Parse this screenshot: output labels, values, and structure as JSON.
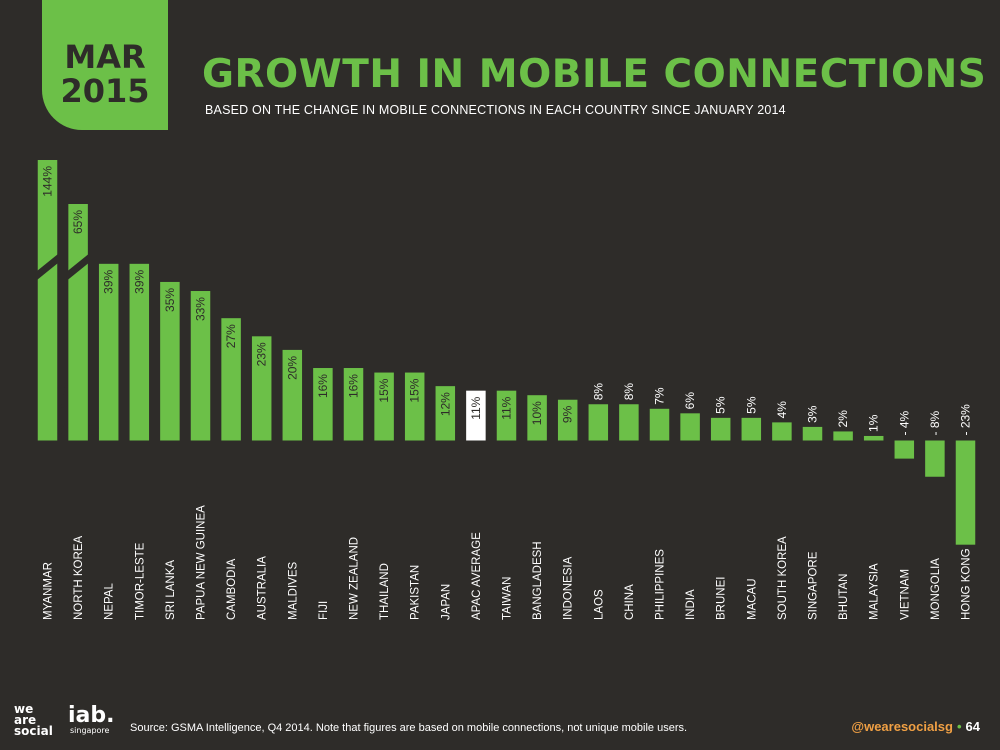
{
  "badge": {
    "month": "MAR",
    "year": "2015"
  },
  "header": {
    "title": "GROWTH IN MOBILE CONNECTIONS",
    "subtitle": "BASED ON THE CHANGE IN MOBILE CONNECTIONS IN EACH COUNTRY SINCE JANUARY 2014"
  },
  "watermark": {
    "lines": [
      "we",
      "are",
      "social"
    ]
  },
  "footer": {
    "logo1": [
      "we",
      "are",
      "social"
    ],
    "logo2": {
      "name": "iab.",
      "sub": "singapore"
    },
    "source": "Source: GSMA Intelligence, Q4 2014. Note that figures are based on mobile connections, not unique mobile users.",
    "handle": "@wearesocialsg",
    "page": "64"
  },
  "colors": {
    "background": "#2e2c29",
    "accent": "#6cc048",
    "average": "#ffffff",
    "handle": "#f0a044"
  },
  "chart_data": {
    "type": "bar",
    "truncated_categories": [
      "MYANMAR",
      "NORTH KOREA"
    ],
    "highlight_category": "APAC AVERAGE",
    "categories": [
      "MYANMAR",
      "NORTH KOREA",
      "NEPAL",
      "TIMOR-LESTE",
      "SRI LANKA",
      "PAPUA NEW GUINEA",
      "CAMBODIA",
      "AUSTRALIA",
      "MALDIVES",
      "FIJI",
      "NEW ZEALAND",
      "THAILAND",
      "PAKISTAN",
      "JAPAN",
      "APAC AVERAGE",
      "TAIWAN",
      "BANGLADESH",
      "INDONESIA",
      "LAOS",
      "CHINA",
      "PHILIPPINES",
      "INDIA",
      "BRUNEI",
      "MACAU",
      "SOUTH KOREA",
      "SINGAPORE",
      "BHUTAN",
      "MALAYSIA",
      "VIETNAM",
      "MONGOLIA",
      "HONG KONG"
    ],
    "values": [
      144,
      65,
      39,
      39,
      35,
      33,
      27,
      23,
      20,
      16,
      16,
      15,
      15,
      12,
      11,
      11,
      10,
      9,
      8,
      8,
      7,
      6,
      5,
      5,
      4,
      3,
      2,
      1,
      -4,
      -8,
      -23
    ],
    "labels": [
      "144%",
      "65%",
      "39%",
      "39%",
      "35%",
      "33%",
      "27%",
      "23%",
      "20%",
      "16%",
      "16%",
      "15%",
      "15%",
      "12%",
      "11%",
      "11%",
      "10%",
      "9%",
      "8%",
      "8%",
      "7%",
      "6%",
      "5%",
      "5%",
      "4%",
      "3%",
      "2%",
      "1%",
      "- 4%",
      "- 8%",
      "- 23%"
    ]
  }
}
